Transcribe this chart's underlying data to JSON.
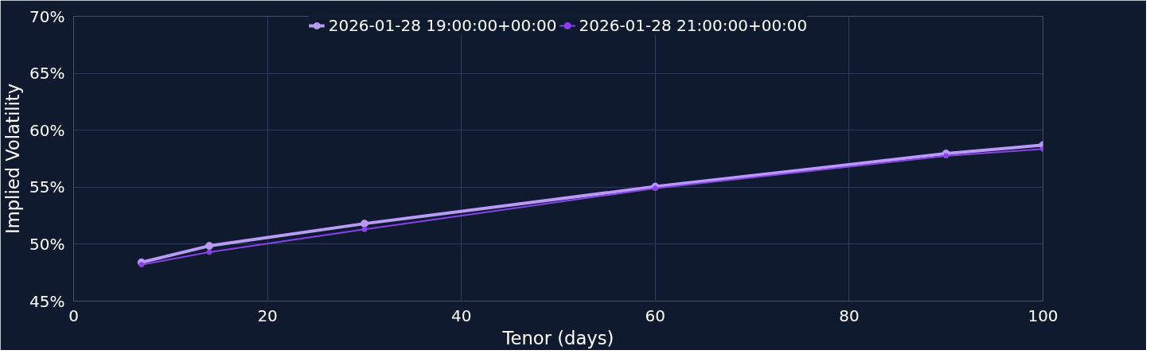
{
  "chart_data": {
    "type": "line",
    "xlabel": "Tenor (days)",
    "ylabel": "Implied Volatility",
    "series": [
      {
        "name": "2026-01-28 19:00:00+00:00",
        "color": "#b89cf2",
        "x": [
          7,
          14,
          30,
          60,
          90,
          100
        ],
        "values": [
          48.4,
          49.85,
          51.8,
          55.05,
          57.95,
          58.7
        ]
      },
      {
        "name": "2026-01-28 21:00:00+00:00",
        "color": "#8c3ff0",
        "x": [
          7,
          14,
          30,
          60,
          90,
          100
        ],
        "values": [
          48.2,
          49.3,
          51.3,
          54.9,
          57.75,
          58.35
        ]
      }
    ],
    "xlim": [
      0,
      100
    ],
    "xticks": [
      0,
      20,
      40,
      60,
      80,
      100
    ],
    "ylim": [
      45,
      70
    ],
    "yticks": [
      {
        "value": 45,
        "label": "45%"
      },
      {
        "value": 50,
        "label": "50%"
      },
      {
        "value": 55,
        "label": "55%"
      },
      {
        "value": 60,
        "label": "60%"
      },
      {
        "value": 65,
        "label": "65%"
      },
      {
        "value": 70,
        "label": "70%"
      }
    ],
    "grid": true,
    "legend": "top",
    "marker": "circle",
    "line_style": "solid"
  }
}
